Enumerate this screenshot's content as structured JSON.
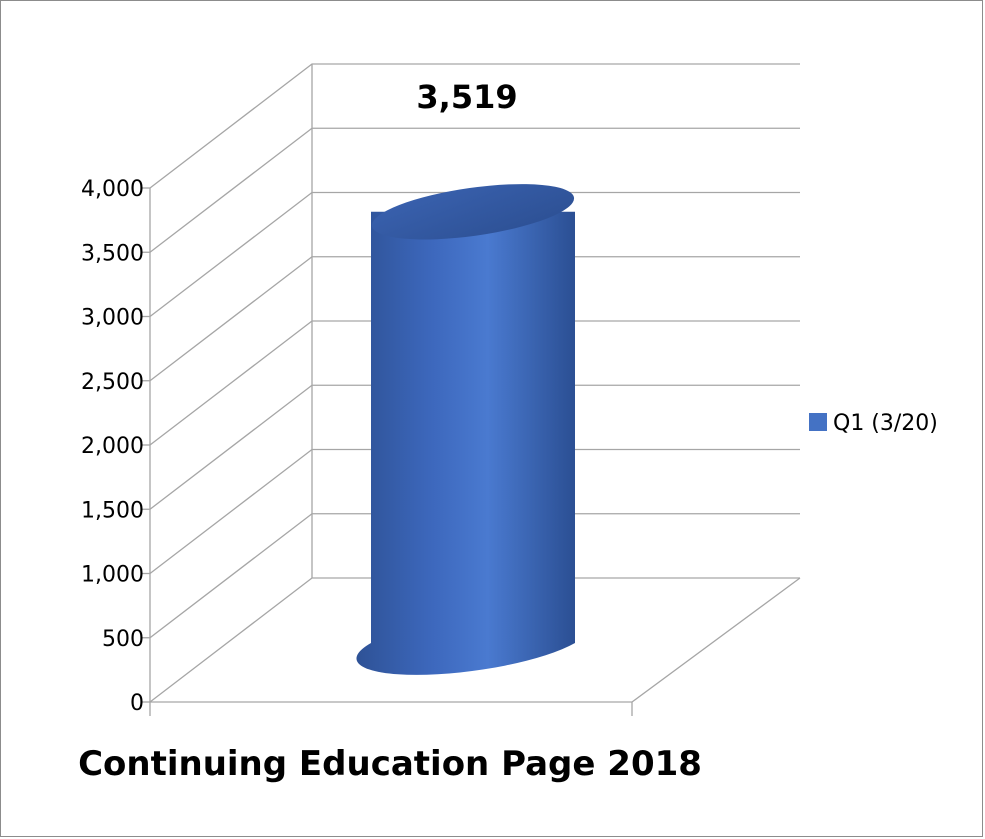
{
  "chart_data": {
    "type": "bar",
    "style": "3d-cylinder",
    "categories": [
      "Continuing Education Page 2018"
    ],
    "series": [
      {
        "name": "Q1 (3/20)",
        "values": [
          3519
        ],
        "color": "#4472c4"
      }
    ],
    "data_labels": [
      "3,519"
    ],
    "ylim": [
      0,
      4000
    ],
    "yticks": [
      0,
      500,
      1000,
      1500,
      2000,
      2500,
      3000,
      3500,
      4000
    ],
    "ytick_labels": [
      "0",
      "500",
      "1,000",
      "1,500",
      "2,000",
      "2,500",
      "3,000",
      "3,500",
      "4,000"
    ],
    "grid": true,
    "legend_position": "right"
  }
}
